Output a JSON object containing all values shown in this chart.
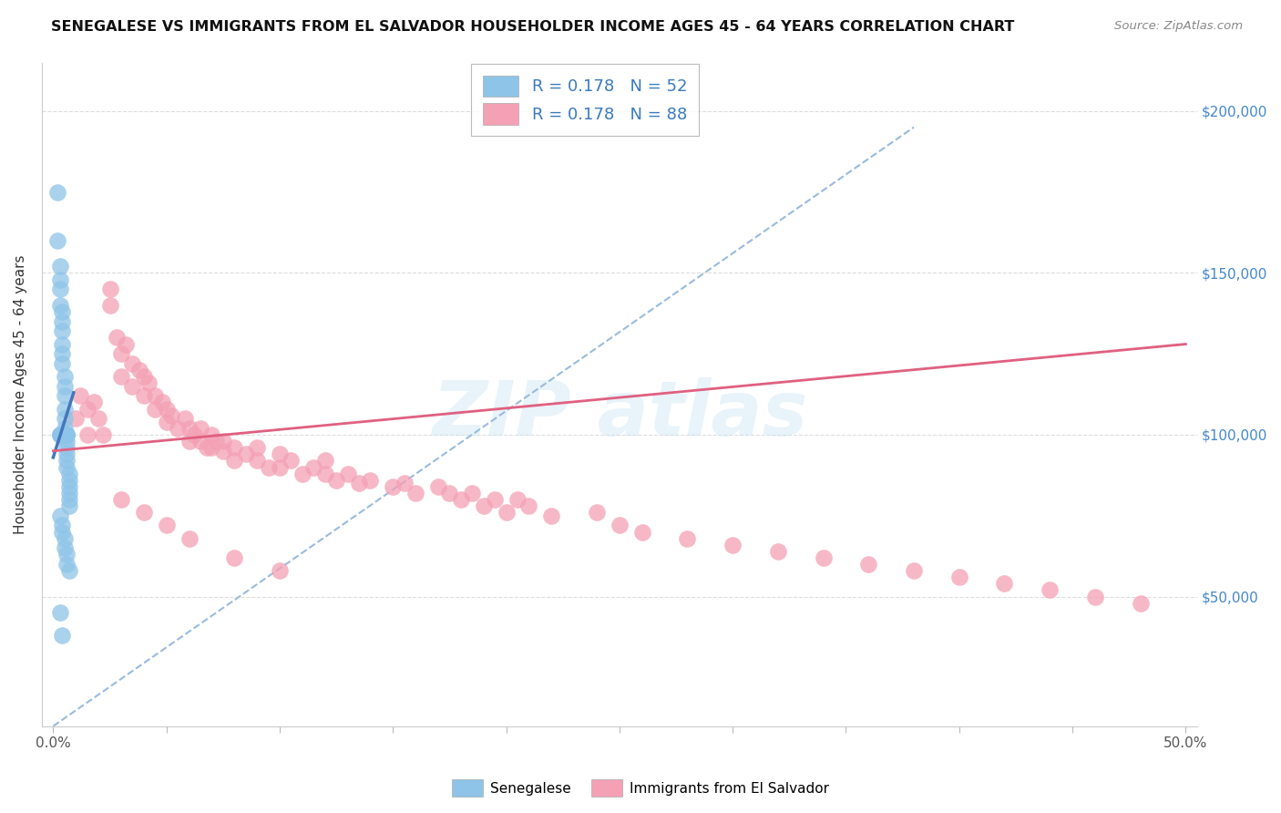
{
  "title": "SENEGALESE VS IMMIGRANTS FROM EL SALVADOR HOUSEHOLDER INCOME AGES 45 - 64 YEARS CORRELATION CHART",
  "source": "Source: ZipAtlas.com",
  "ylabel": "Householder Income Ages 45 - 64 years",
  "legend1_label": "R = 0.178   N = 52",
  "legend2_label": "R = 0.178   N = 88",
  "color_blue": "#8ec4e8",
  "color_pink": "#f4a0b5",
  "color_blue_line": "#4477bb",
  "color_pink_line": "#e06080",
  "color_dashed_line": "#99bbdd",
  "senegalese_x": [
    0.002,
    0.002,
    0.003,
    0.003,
    0.003,
    0.003,
    0.004,
    0.004,
    0.004,
    0.004,
    0.004,
    0.004,
    0.005,
    0.005,
    0.005,
    0.005,
    0.005,
    0.005,
    0.006,
    0.006,
    0.006,
    0.006,
    0.006,
    0.006,
    0.007,
    0.007,
    0.007,
    0.007,
    0.007,
    0.007,
    0.003,
    0.004,
    0.004,
    0.005,
    0.005,
    0.006,
    0.006,
    0.007,
    0.003,
    0.004,
    0.005,
    0.006,
    0.003,
    0.004,
    0.005,
    0.006,
    0.003,
    0.004,
    0.005,
    0.006,
    0.003,
    0.004
  ],
  "senegalese_y": [
    175000,
    160000,
    152000,
    148000,
    145000,
    140000,
    138000,
    135000,
    132000,
    128000,
    125000,
    122000,
    118000,
    115000,
    112000,
    108000,
    105000,
    102000,
    100000,
    98000,
    96000,
    94000,
    92000,
    90000,
    88000,
    86000,
    84000,
    82000,
    80000,
    78000,
    75000,
    72000,
    70000,
    68000,
    65000,
    63000,
    60000,
    58000,
    100000,
    100000,
    100000,
    100000,
    100000,
    100000,
    100000,
    100000,
    100000,
    100000,
    100000,
    100000,
    45000,
    38000
  ],
  "salvador_x": [
    0.01,
    0.012,
    0.015,
    0.015,
    0.018,
    0.02,
    0.022,
    0.025,
    0.025,
    0.028,
    0.03,
    0.03,
    0.032,
    0.035,
    0.035,
    0.038,
    0.04,
    0.04,
    0.042,
    0.045,
    0.045,
    0.048,
    0.05,
    0.05,
    0.052,
    0.055,
    0.058,
    0.06,
    0.06,
    0.062,
    0.065,
    0.065,
    0.068,
    0.07,
    0.07,
    0.072,
    0.075,
    0.075,
    0.08,
    0.08,
    0.085,
    0.09,
    0.09,
    0.095,
    0.1,
    0.1,
    0.105,
    0.11,
    0.115,
    0.12,
    0.12,
    0.125,
    0.13,
    0.135,
    0.14,
    0.15,
    0.155,
    0.16,
    0.17,
    0.175,
    0.18,
    0.185,
    0.19,
    0.195,
    0.2,
    0.205,
    0.21,
    0.22,
    0.24,
    0.25,
    0.26,
    0.28,
    0.3,
    0.32,
    0.34,
    0.36,
    0.38,
    0.4,
    0.42,
    0.44,
    0.46,
    0.48,
    0.03,
    0.04,
    0.05,
    0.06,
    0.08,
    0.1
  ],
  "salvador_y": [
    105000,
    112000,
    108000,
    100000,
    110000,
    105000,
    100000,
    145000,
    140000,
    130000,
    125000,
    118000,
    128000,
    122000,
    115000,
    120000,
    118000,
    112000,
    116000,
    112000,
    108000,
    110000,
    108000,
    104000,
    106000,
    102000,
    105000,
    102000,
    98000,
    100000,
    98000,
    102000,
    96000,
    100000,
    96000,
    98000,
    95000,
    98000,
    96000,
    92000,
    94000,
    96000,
    92000,
    90000,
    94000,
    90000,
    92000,
    88000,
    90000,
    92000,
    88000,
    86000,
    88000,
    85000,
    86000,
    84000,
    85000,
    82000,
    84000,
    82000,
    80000,
    82000,
    78000,
    80000,
    76000,
    80000,
    78000,
    75000,
    76000,
    72000,
    70000,
    68000,
    66000,
    64000,
    62000,
    60000,
    58000,
    56000,
    54000,
    52000,
    50000,
    48000,
    80000,
    76000,
    72000,
    68000,
    62000,
    58000
  ],
  "xlim": [
    -0.005,
    0.505
  ],
  "ylim": [
    10000,
    215000
  ],
  "xtick_positions": [
    0.0,
    0.05,
    0.1,
    0.15,
    0.2,
    0.25,
    0.3,
    0.35,
    0.4,
    0.45,
    0.5
  ],
  "ytick_positions": [
    50000,
    100000,
    150000,
    200000
  ],
  "ytick_labels": [
    "$50,000",
    "$100,000",
    "$150,000",
    "$200,000"
  ],
  "blue_line_x": [
    0.0,
    0.009
  ],
  "blue_line_y": [
    93000,
    113000
  ],
  "pink_line_x": [
    0.0,
    0.5
  ],
  "pink_line_y": [
    95000,
    128000
  ],
  "dash_line_x": [
    0.0,
    0.38
  ],
  "dash_line_y": [
    10000,
    195000
  ]
}
